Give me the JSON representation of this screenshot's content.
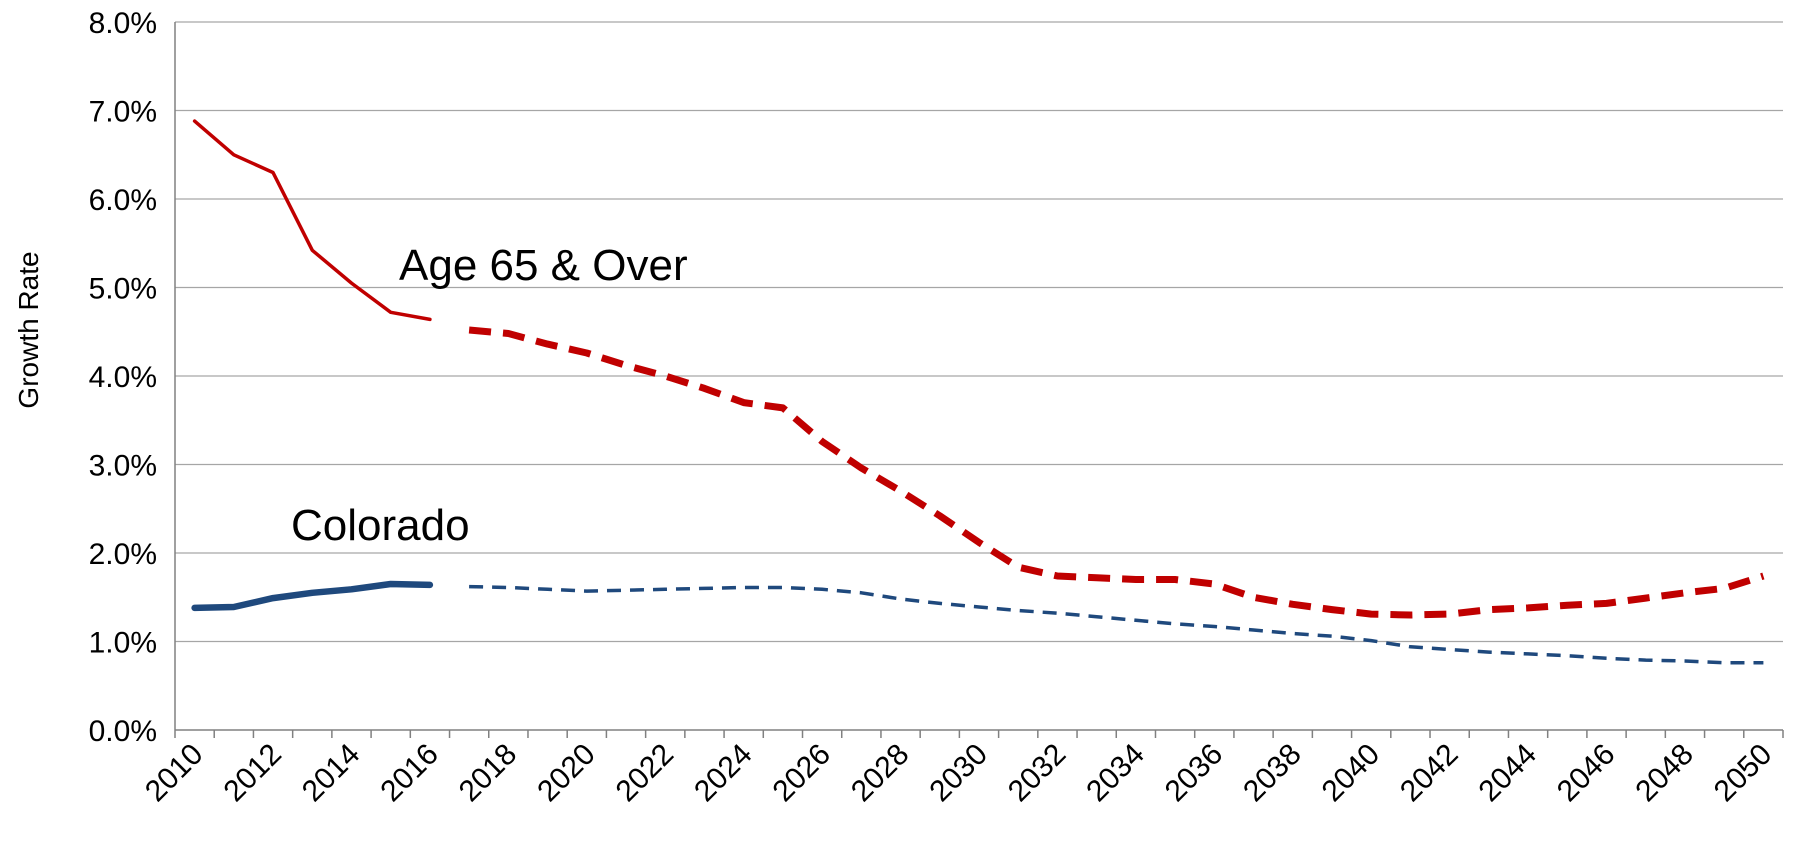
{
  "chart_data": {
    "type": "line",
    "ylabel": "Growth Rate",
    "ylim": [
      0,
      8
    ],
    "y_tick_labels": [
      "0.0%",
      "1.0%",
      "2.0%",
      "3.0%",
      "4.0%",
      "5.0%",
      "6.0%",
      "7.0%",
      "8.0%"
    ],
    "y_ticks": [
      0,
      1,
      2,
      3,
      4,
      5,
      6,
      7,
      8
    ],
    "x_tick_labels": [
      "2010",
      "2012",
      "2014",
      "2016",
      "2018",
      "2020",
      "2022",
      "2024",
      "2026",
      "2028",
      "2030",
      "2032",
      "2034",
      "2036",
      "2038",
      "2040",
      "2042",
      "2044",
      "2046",
      "2048",
      "2050"
    ],
    "x_ticks": [
      2010,
      2012,
      2014,
      2016,
      2018,
      2020,
      2022,
      2024,
      2026,
      2028,
      2030,
      2032,
      2034,
      2036,
      2038,
      2040,
      2042,
      2044,
      2046,
      2048,
      2050
    ],
    "xlim": [
      2009.5,
      2050.5
    ],
    "grid": true,
    "series": [
      {
        "name": "Age 65 & Over",
        "color": "#c00000",
        "actual": {
          "x": [
            2010,
            2011,
            2012,
            2013,
            2014,
            2015,
            2016
          ],
          "y": [
            6.88,
            6.5,
            6.3,
            5.42,
            5.05,
            4.72,
            4.64
          ]
        },
        "forecast": {
          "x": [
            2017,
            2018,
            2019,
            2020,
            2021,
            2022,
            2023,
            2024,
            2025,
            2026,
            2027,
            2028,
            2029,
            2030,
            2031,
            2032,
            2033,
            2034,
            2035,
            2036,
            2037,
            2038,
            2039,
            2040,
            2041,
            2042,
            2043,
            2044,
            2045,
            2046,
            2047,
            2048,
            2049,
            2050
          ],
          "y": [
            4.52,
            4.48,
            4.36,
            4.26,
            4.12,
            4.0,
            3.86,
            3.7,
            3.64,
            3.26,
            2.96,
            2.7,
            2.42,
            2.12,
            1.84,
            1.74,
            1.72,
            1.7,
            1.7,
            1.65,
            1.5,
            1.42,
            1.36,
            1.31,
            1.3,
            1.31,
            1.36,
            1.38,
            1.41,
            1.43,
            1.49,
            1.55,
            1.6,
            1.74
          ]
        }
      },
      {
        "name": "Colorado",
        "color": "#1f497d",
        "actual": {
          "x": [
            2010,
            2011,
            2012,
            2013,
            2014,
            2015,
            2016
          ],
          "y": [
            1.38,
            1.39,
            1.49,
            1.55,
            1.59,
            1.65,
            1.64
          ]
        },
        "forecast": {
          "x": [
            2017,
            2018,
            2019,
            2020,
            2021,
            2022,
            2023,
            2024,
            2025,
            2026,
            2027,
            2028,
            2029,
            2030,
            2031,
            2032,
            2033,
            2034,
            2035,
            2036,
            2037,
            2038,
            2039,
            2040,
            2041,
            2042,
            2043,
            2044,
            2045,
            2046,
            2047,
            2048,
            2049,
            2050
          ],
          "y": [
            1.62,
            1.61,
            1.59,
            1.57,
            1.58,
            1.59,
            1.6,
            1.61,
            1.61,
            1.59,
            1.55,
            1.48,
            1.43,
            1.39,
            1.35,
            1.32,
            1.28,
            1.24,
            1.2,
            1.17,
            1.13,
            1.09,
            1.06,
            1.01,
            0.94,
            0.91,
            0.88,
            0.86,
            0.84,
            0.81,
            0.79,
            0.78,
            0.76,
            0.76
          ]
        }
      }
    ]
  }
}
